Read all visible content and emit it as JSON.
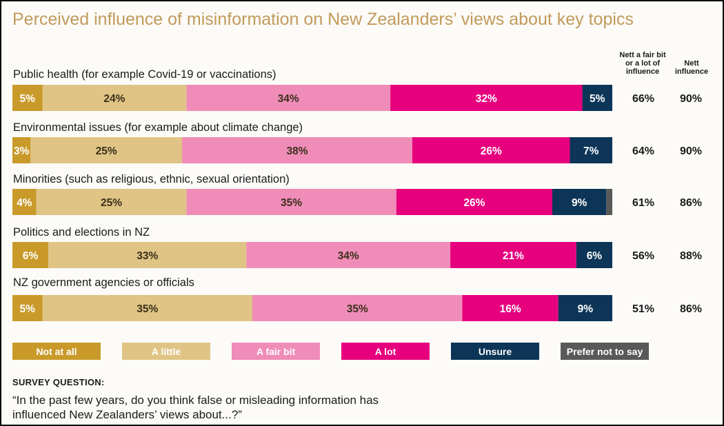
{
  "title": "Perceived influence of misinformation on New Zealanders’ views about key topics",
  "colors": {
    "title": "#c29a5b",
    "not_at_all": "#c99a2a",
    "a_little": "#dfc485",
    "a_fair_bit": "#f08cb8",
    "a_lot": "#e6007e",
    "unsure": "#0d3557",
    "prefer_not_to_say": "#595959"
  },
  "column_headers": {
    "nett_fair_bit_or_lot": "Nett a fair bit\nor a lot of\ninfluence",
    "nett_influence": "Nett\ninfluence"
  },
  "survey": {
    "heading": "SURVEY QUESTION:",
    "question": "“In the past few years, do you think false or misleading information has influenced New Zealanders’ views about...?”"
  },
  "chart_data": {
    "type": "bar",
    "orientation": "horizontal",
    "stacked": true,
    "categories": [
      "Public health (for example Covid-19 or vaccinations)",
      "Environmental issues (for example about climate change)",
      "Minorities (such as religious, ethnic, sexual orientation)",
      "Politics and elections in NZ",
      "NZ government agencies or officials"
    ],
    "series": [
      {
        "name": "Not at all",
        "values": [
          5,
          3,
          4,
          6,
          5
        ]
      },
      {
        "name": "A little",
        "values": [
          24,
          25,
          25,
          33,
          35
        ]
      },
      {
        "name": "A fair bit",
        "values": [
          34,
          38,
          35,
          34,
          35
        ]
      },
      {
        "name": "A lot",
        "values": [
          32,
          26,
          26,
          21,
          16
        ]
      },
      {
        "name": "Unsure",
        "values": [
          5,
          7,
          9,
          6,
          9
        ]
      },
      {
        "name": "Prefer not to say",
        "values": [
          0,
          0,
          1,
          0,
          0
        ]
      }
    ],
    "data_label_suffix": "%",
    "nett_fair_bit_or_lot": [
      "66%",
      "64%",
      "61%",
      "56%",
      "51%"
    ],
    "nett_influence": [
      "90%",
      "90%",
      "86%",
      "88%",
      "86%"
    ],
    "legend_placement": "bottom",
    "grid": false
  }
}
